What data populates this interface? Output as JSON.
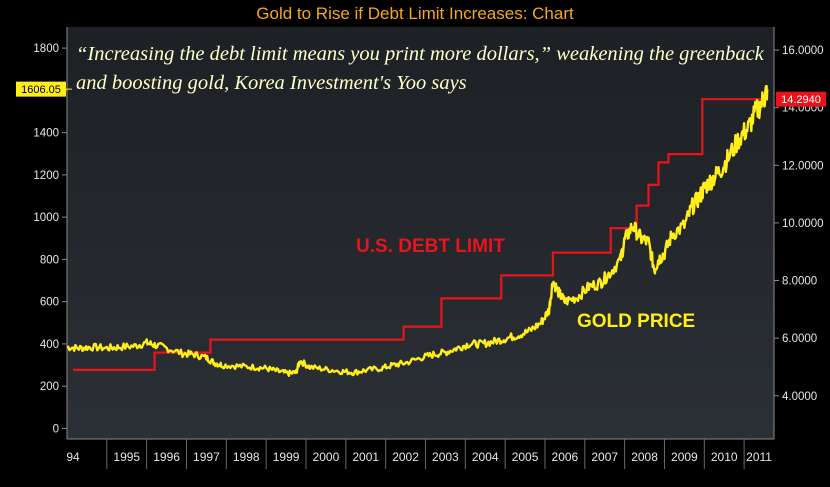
{
  "chart_data": {
    "type": "line",
    "title": "Gold to Rise if Debt Limit Increases: Chart",
    "annotation": "“Increasing the debt limit means you print more dollars,” weakening the greenback and boosting gold, Korea Investment's Yoo says",
    "x_tick_labels": [
      "94",
      "1995",
      "1996",
      "1997",
      "1998",
      "1999",
      "2000",
      "2001",
      "2002",
      "2003",
      "2004",
      "2005",
      "2006",
      "2007",
      "2008",
      "2009",
      "2010",
      "2011"
    ],
    "xlim": [
      1994,
      2011.75
    ],
    "y_left": {
      "ylim": [
        -50,
        1900
      ],
      "ticks": [
        0,
        200,
        400,
        600,
        800,
        1000,
        1200,
        1400,
        1600,
        1800
      ],
      "last_value_label": "1606.05"
    },
    "y_right": {
      "ylim": [
        2.5,
        16.8
      ],
      "ticks": [
        "4.0000",
        "6.0000",
        "8.0000",
        "10.0000",
        "12.0000",
        "14.0000",
        "16.0000"
      ],
      "last_value_label": "14.2940"
    },
    "grid": false,
    "series": [
      {
        "name": "U.S. DEBT LIMIT",
        "axis": "right",
        "color": "#e8141c",
        "step": true,
        "x": [
          1994.15,
          1996.2,
          1997.6,
          2002.45,
          2003.4,
          2004.9,
          2006.2,
          2007.65,
          2008.3,
          2008.6,
          2008.85,
          2009.1,
          2009.95,
          2011.6
        ],
        "y": [
          4.9,
          5.5,
          5.95,
          6.4,
          7.38,
          8.18,
          8.97,
          9.82,
          10.6,
          11.32,
          12.1,
          12.39,
          14.294,
          14.294
        ]
      },
      {
        "name": "GOLD PRICE",
        "axis": "left",
        "color": "#ffee1a",
        "x": [
          1994.0,
          1994.3,
          1994.6,
          1995.0,
          1995.3,
          1995.7,
          1996.0,
          1996.2,
          1996.5,
          1996.9,
          1997.2,
          1997.5,
          1997.7,
          1997.9,
          1998.3,
          1998.7,
          1999.0,
          1999.3,
          1999.55,
          1999.75,
          1999.85,
          2000.1,
          2000.5,
          2000.9,
          2001.2,
          2001.5,
          2001.9,
          2002.2,
          2002.5,
          2002.9,
          2003.2,
          2003.5,
          2003.8,
          2004.1,
          2004.4,
          2004.7,
          2005.0,
          2005.3,
          2005.6,
          2005.9,
          2006.1,
          2006.2,
          2006.35,
          2006.5,
          2006.8,
          2007.1,
          2007.4,
          2007.6,
          2007.9,
          2008.0,
          2008.2,
          2008.4,
          2008.6,
          2008.75,
          2008.85,
          2009.0,
          2009.2,
          2009.5,
          2009.7,
          2009.9,
          2010.0,
          2010.2,
          2010.4,
          2010.6,
          2010.9,
          2011.1,
          2011.3,
          2011.5,
          2011.58
        ],
        "y": [
          385,
          380,
          385,
          380,
          385,
          390,
          405,
          395,
          380,
          355,
          350,
          335,
          310,
          300,
          295,
          290,
          285,
          270,
          260,
          265,
          320,
          290,
          280,
          270,
          265,
          275,
          285,
          300,
          310,
          335,
          350,
          360,
          380,
          400,
          400,
          410,
          425,
          440,
          460,
          500,
          560,
          700,
          640,
          600,
          620,
          670,
          690,
          730,
          800,
          890,
          960,
          900,
          880,
          750,
          800,
          830,
          920,
          960,
          1050,
          1100,
          1140,
          1180,
          1220,
          1280,
          1380,
          1420,
          1500,
          1560,
          1606
        ]
      }
    ]
  }
}
